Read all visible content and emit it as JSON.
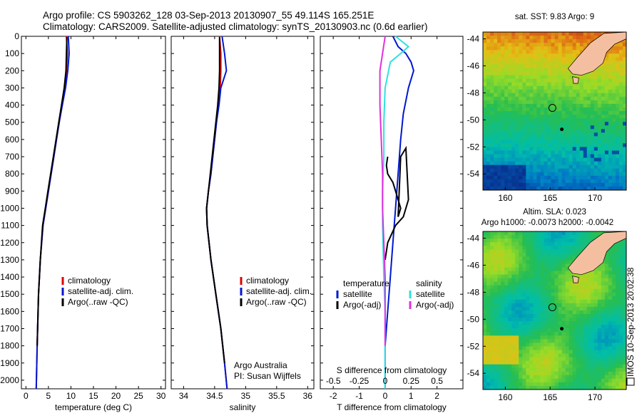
{
  "title_line1": "Argo profile: CS 5903262_128 03-Sep-2013 20130907_55 49.114S 165.251E",
  "title_line2": "Climatology: CARS2009. Satellite-adjusted climatology: synTS_20130903.nc (0.6d earlier)",
  "side_stamp": "IMOS 10-Sep-2013 20:02:38",
  "colors": {
    "climatology": "#e00000",
    "satellite": "#0018d0",
    "argo": "#000000",
    "salinity_sat": "#30e0e0",
    "salinity_argo": "#e030e0",
    "land": "#f4bfa0"
  },
  "chart_data": [
    {
      "type": "line",
      "xlabel": "temperature (deg C)",
      "ylabel": "",
      "xlim": [
        -1,
        31
      ],
      "ylim": [
        2050,
        0
      ],
      "xticks": [
        0,
        5,
        10,
        15,
        20,
        25,
        30
      ],
      "yticks": [
        0,
        100,
        200,
        300,
        400,
        500,
        600,
        700,
        800,
        900,
        1000,
        1100,
        1200,
        1300,
        1400,
        1500,
        1600,
        1700,
        1800,
        1900,
        2000
      ],
      "legend": [
        "climatology",
        "satellite-adj. clim.",
        "Argo(..raw -QC)"
      ],
      "legend_position": "center",
      "series": [
        {
          "name": "climatology",
          "color": "#e00000",
          "x": [
            9.0,
            9.2,
            9.0,
            8.6,
            8.0,
            7.4,
            6.8,
            6.2,
            5.6,
            5.0,
            4.4,
            3.8,
            3.2,
            2.8,
            2.5,
            2.3
          ],
          "y": [
            0,
            100,
            200,
            300,
            400,
            500,
            600,
            700,
            800,
            900,
            1000,
            1100,
            1300,
            1500,
            1800,
            2050
          ]
        },
        {
          "name": "satellite-adj. clim.",
          "color": "#0018d0",
          "x": [
            9.4,
            9.6,
            9.3,
            8.8,
            8.1,
            7.4,
            6.8,
            6.2,
            5.6,
            5.0,
            4.4,
            3.8,
            3.2,
            2.8,
            2.5,
            2.3
          ],
          "y": [
            0,
            100,
            200,
            300,
            400,
            500,
            600,
            700,
            800,
            900,
            1000,
            1100,
            1300,
            1500,
            1800,
            2050
          ]
        },
        {
          "name": "Argo(..raw -QC)",
          "color": "#000000",
          "x": [
            9.1,
            9.0,
            8.9,
            8.5,
            7.9,
            7.3,
            6.7,
            6.1,
            5.5,
            4.9,
            4.3,
            3.7,
            3.2,
            2.8,
            2.5
          ],
          "y": [
            5,
            100,
            200,
            300,
            400,
            500,
            600,
            700,
            800,
            900,
            1000,
            1100,
            1300,
            1500,
            1800
          ]
        }
      ]
    },
    {
      "type": "line",
      "xlabel": "salinity",
      "ylabel": "",
      "xlim": [
        33.8,
        36.1
      ],
      "ylim": [
        2050,
        0
      ],
      "xticks": [
        34,
        34.5,
        35,
        35.5,
        36
      ],
      "legend": [
        "climatology",
        "satellite-adj. clim.",
        "Argo(..raw -QC)"
      ],
      "annotation": [
        "Argo Australia",
        "PI: Susan Wijffels"
      ],
      "series": [
        {
          "name": "climatology",
          "color": "#e00000",
          "x": [
            34.58,
            34.6,
            34.6,
            34.59,
            34.56,
            34.53,
            34.5,
            34.47,
            34.44,
            34.4,
            34.37,
            34.38,
            34.44,
            34.52,
            34.6,
            34.66,
            34.7
          ],
          "y": [
            0,
            100,
            200,
            300,
            400,
            500,
            600,
            700,
            800,
            900,
            1000,
            1100,
            1300,
            1500,
            1700,
            1900,
            2050
          ]
        },
        {
          "name": "satellite-adj. clim.",
          "color": "#0018d0",
          "x": [
            34.62,
            34.66,
            34.69,
            34.6,
            34.57,
            34.53,
            34.5,
            34.47,
            34.44,
            34.4,
            34.37,
            34.38,
            34.44,
            34.52,
            34.6,
            34.66,
            34.7
          ],
          "y": [
            0,
            100,
            200,
            300,
            400,
            500,
            600,
            700,
            800,
            900,
            1000,
            1100,
            1300,
            1500,
            1700,
            1900,
            2050
          ]
        },
        {
          "name": "Argo(..raw -QC)",
          "color": "#000000",
          "x": [
            34.58,
            34.58,
            34.58,
            34.57,
            34.55,
            34.52,
            34.49,
            34.46,
            34.43,
            34.4,
            34.37,
            34.38,
            34.44,
            34.52,
            34.6,
            34.66
          ],
          "y": [
            5,
            100,
            200,
            300,
            400,
            500,
            600,
            700,
            800,
            900,
            1000,
            1100,
            1300,
            1500,
            1700,
            1900
          ]
        }
      ]
    },
    {
      "type": "line",
      "xlabel": "T difference from climatology",
      "xlabel_top": "S difference from climatology",
      "xlim": [
        -2.5,
        3
      ],
      "ylim": [
        2050,
        0
      ],
      "xticks": [
        -2,
        -1,
        0,
        1,
        2
      ],
      "xticks_top_labels": [
        "-0.5",
        "-0.25",
        "0",
        "0.25",
        "0.5"
      ],
      "xticks_top_positions_T": [
        -2,
        -1,
        0,
        1,
        2
      ],
      "legend_groups": [
        {
          "title": "temperature",
          "items": [
            "satellite",
            "Argo(-adj)"
          ]
        },
        {
          "title": "salinity",
          "items": [
            "satellite",
            "Argo(-adj)"
          ]
        }
      ],
      "series": [
        {
          "name": "temperature satellite",
          "color": "#0018d0",
          "x": [
            0.3,
            0.5,
            0.8,
            1.0,
            1.1,
            0.9,
            0.7,
            0.6,
            0.5,
            0.4,
            0.3,
            0.2,
            0.1,
            0.0,
            0.0
          ],
          "y": [
            0,
            60,
            100,
            150,
            200,
            300,
            450,
            600,
            800,
            1000,
            1200,
            1400,
            1600,
            1800,
            2050
          ]
        },
        {
          "name": "temperature Argo(-adj)",
          "color": "#000000",
          "x": [
            0.1,
            0.05,
            0.1,
            0.3,
            0.4,
            0.5,
            0.6,
            0.5,
            0.6,
            0.8,
            0.9,
            0.7,
            0.4,
            0.1,
            0.0
          ],
          "y": [
            700,
            750,
            800,
            850,
            900,
            950,
            1000,
            1050,
            700,
            650,
            950,
            1050,
            1100,
            1200,
            1300
          ]
        },
        {
          "name": "salinity satellite",
          "color": "#30e0e0",
          "x": [
            0.4,
            0.9,
            0.6,
            0.2,
            0.0,
            -0.05,
            -0.05,
            -0.1,
            -0.1,
            -0.05,
            0.0,
            0.0,
            0.0
          ],
          "y": [
            0,
            60,
            100,
            150,
            300,
            500,
            700,
            900,
            1100,
            1400,
            1600,
            1800,
            2050
          ]
        },
        {
          "name": "salinity Argo(-adj)",
          "color": "#e030e0",
          "x": [
            0.0,
            -0.1,
            -0.2,
            -0.2,
            -0.15,
            -0.1,
            -0.1,
            -0.05,
            0.0,
            0.0,
            0.0
          ],
          "y": [
            0,
            100,
            200,
            400,
            600,
            800,
            1000,
            1200,
            1400,
            1600,
            1800
          ]
        }
      ]
    },
    {
      "type": "heatmap",
      "title": "sat. SST: 9.83 Argo: 9",
      "xticks": [
        160,
        165,
        170
      ],
      "yticks": [
        -44,
        -46,
        -48,
        -50,
        -52,
        -54
      ],
      "xlim": [
        157.5,
        173.5
      ],
      "ylim": [
        -55.2,
        -43.5
      ],
      "float_position": {
        "lon": 165.251,
        "lat": -49.114
      }
    },
    {
      "type": "heatmap",
      "title": "Altim. SLA: 0.023",
      "subtitle": "Argo h1000: -0.0073 h2000: -0.0042",
      "xticks": [
        160,
        165,
        170
      ],
      "yticks": [
        -44,
        -46,
        -48,
        -50,
        -52,
        -54
      ],
      "xlim": [
        157.5,
        173.5
      ],
      "ylim": [
        -55.2,
        -43.5
      ],
      "float_position": {
        "lon": 165.251,
        "lat": -49.114
      }
    }
  ]
}
